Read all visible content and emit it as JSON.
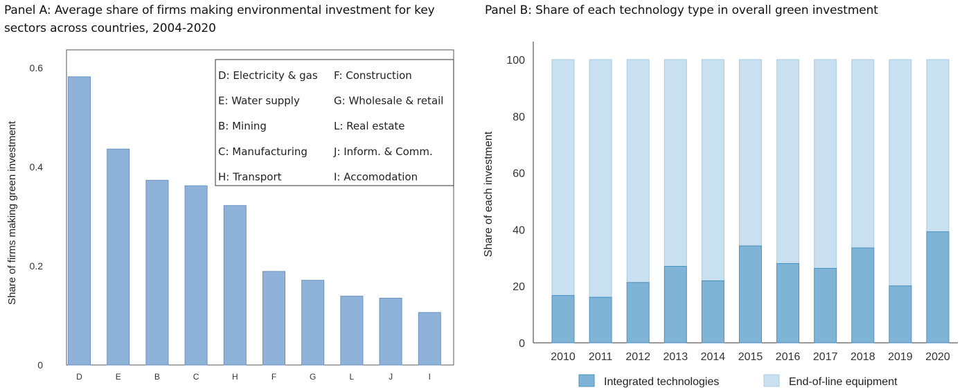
{
  "panelA_title": "Panel A: Average share of firms making environmental investment for key sectors across countries, 2004-2020",
  "panelB_title": "Panel B: Share of each technology type in overall green investment",
  "colors": {
    "barA": "#8fb2d9",
    "barA_edge": "#6a91c0",
    "integrated": "#7fb4d6",
    "integrated_edge": "#4a8fbf",
    "eol": "#c8e0ef",
    "eol_edge": "#a9cde4"
  },
  "chart_data": [
    {
      "type": "bar",
      "ylabel": "Share of firms making green investment",
      "xlabel": "",
      "ylim": [
        0,
        0.6
      ],
      "yticks": [
        "0",
        "0.2",
        "0.4",
        "0.6"
      ],
      "ytick_values": [
        0,
        0.2,
        0.4,
        0.6
      ],
      "categories": [
        "D",
        "E",
        "B",
        "C",
        "H",
        "F",
        "G",
        "L",
        "J",
        "I"
      ],
      "values": [
        0.582,
        0.436,
        0.373,
        0.362,
        0.322,
        0.189,
        0.171,
        0.139,
        0.135,
        0.106
      ],
      "legend_placement": "top-right",
      "legend": [
        "D: Electricity & gas",
        "F: Construction",
        "E: Water supply",
        "G: Wholesale & retail",
        "B: Mining",
        "L: Real estate",
        "C: Manufacturing",
        "J: Inform. & Comm.",
        "H: Transport",
        "I: Accomodation"
      ]
    },
    {
      "type": "bar",
      "stacked": true,
      "ylabel": "Share of each investment",
      "xlabel": "",
      "ylim": [
        0,
        100
      ],
      "yticks": [
        "0",
        "20",
        "40",
        "60",
        "80",
        "100"
      ],
      "ytick_values": [
        0,
        20,
        40,
        60,
        80,
        100
      ],
      "categories": [
        "2010",
        "2011",
        "2012",
        "2013",
        "2014",
        "2015",
        "2016",
        "2017",
        "2018",
        "2019",
        "2020"
      ],
      "legend_placement": "bottom",
      "series": [
        {
          "name": "Integrated technologies",
          "values": [
            16.7,
            16.1,
            21.3,
            27.0,
            21.9,
            34.2,
            28.0,
            26.3,
            33.5,
            20.1,
            39.2
          ]
        },
        {
          "name": "End-of-line equipment",
          "values": [
            83.3,
            83.9,
            78.7,
            73.0,
            78.1,
            65.8,
            72.0,
            73.7,
            66.5,
            79.9,
            60.8
          ]
        }
      ]
    }
  ]
}
